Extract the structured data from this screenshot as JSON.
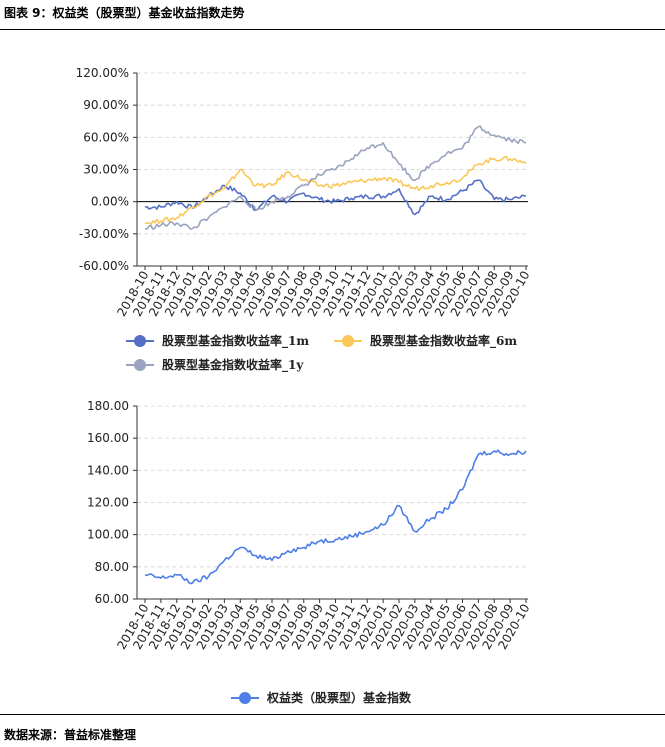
{
  "figure_title": "图表 9：权益类（股票型）基金收益指数走势",
  "source": "数据来源：普益标准整理",
  "colors": {
    "s1m": "#5470c6",
    "s6m": "#fac858",
    "s1y": "#9aa3bf",
    "index": "#4e7fe6"
  },
  "chart_data": [
    {
      "type": "line",
      "x": [
        "2018-10",
        "2018-11",
        "2018-12",
        "2019-01",
        "2019-02",
        "2019-03",
        "2019-04",
        "2019-05",
        "2019-06",
        "2019-07",
        "2019-08",
        "2019-09",
        "2019-10",
        "2019-11",
        "2019-12",
        "2020-01",
        "2020-02",
        "2020-03",
        "2020-04",
        "2020-05",
        "2020-06",
        "2020-07",
        "2020-08",
        "2020-09",
        "2020-10"
      ],
      "yticks": [
        "-60.00%",
        "-30.00%",
        "0.00%",
        "30.00%",
        "60.00%",
        "90.00%",
        "120.00%"
      ],
      "ylim": [
        -0.6,
        1.2
      ],
      "grid": true,
      "legend_position": "bottom",
      "series": [
        {
          "name": "股票型基金指数收益率_1m",
          "color": "#5470c6",
          "values": [
            -0.05,
            -0.05,
            0.0,
            -0.06,
            0.05,
            0.15,
            0.08,
            -0.08,
            0.05,
            0.0,
            0.08,
            0.02,
            0.0,
            0.03,
            0.05,
            0.05,
            0.12,
            -0.12,
            0.05,
            0.02,
            0.1,
            0.2,
            0.02,
            0.02,
            0.05
          ]
        },
        {
          "name": "股票型基金指数收益率_6m",
          "color": "#fac858",
          "values": [
            -0.2,
            -0.18,
            -0.15,
            -0.05,
            0.05,
            0.12,
            0.3,
            0.15,
            0.15,
            0.28,
            0.2,
            0.15,
            0.15,
            0.18,
            0.2,
            0.22,
            0.18,
            0.12,
            0.15,
            0.18,
            0.22,
            0.35,
            0.4,
            0.4,
            0.36
          ]
        },
        {
          "name": "股票型基金指数收益率_1y",
          "color": "#9aa3bf",
          "values": [
            -0.25,
            -0.22,
            -0.2,
            -0.25,
            -0.15,
            -0.05,
            0.05,
            -0.08,
            0.0,
            0.05,
            0.15,
            0.25,
            0.3,
            0.4,
            0.5,
            0.55,
            0.35,
            0.2,
            0.35,
            0.45,
            0.5,
            0.7,
            0.62,
            0.58,
            0.55
          ]
        }
      ]
    },
    {
      "type": "line",
      "x": [
        "2018-10",
        "2018-11",
        "2018-12",
        "2019-01",
        "2019-02",
        "2019-03",
        "2019-04",
        "2019-05",
        "2019-06",
        "2019-07",
        "2019-08",
        "2019-09",
        "2019-10",
        "2019-11",
        "2019-12",
        "2020-01",
        "2020-02",
        "2020-03",
        "2020-04",
        "2020-05",
        "2020-06",
        "2020-07",
        "2020-08",
        "2020-09",
        "2020-10"
      ],
      "yticks": [
        "60.00",
        "80.00",
        "100.00",
        "120.00",
        "140.00",
        "160.00",
        "180.00"
      ],
      "ylim": [
        60,
        180
      ],
      "grid": true,
      "legend_position": "bottom",
      "series": [
        {
          "name": "权益类（股票型）基金指数",
          "color": "#4e7fe6",
          "values": [
            75,
            73,
            75,
            70,
            74,
            84,
            92,
            87,
            84,
            90,
            92,
            96,
            97,
            99,
            102,
            106,
            118,
            102,
            110,
            116,
            128,
            150,
            152,
            150,
            152
          ]
        }
      ]
    }
  ]
}
